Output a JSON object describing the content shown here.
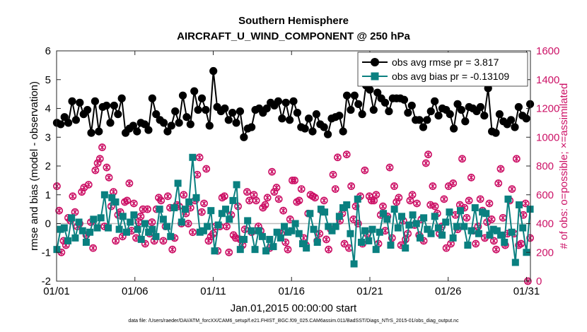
{
  "title_line1": "Southern Hemisphere",
  "title_line2": "AIRCRAFT_U_WIND_COMPONENT @ 250 hPa",
  "colors": {
    "rmse": "#000000",
    "bias": "#0a8080",
    "obs_count": "#cc1166",
    "zero_line": "#bbbbbb"
  },
  "footer": "data file: /Users/raeder/DAI/ATM_forcXX/CAM6_setup/f.e21.FHIST_BGC.f09_025.CAM6assim.011/BadSST/Diags_NTrS_2015-01/obs_diag_output.nc",
  "chart_data": {
    "type": "line",
    "title": "Southern Hemisphere",
    "subtitle": "AIRCRAFT_U_WIND_COMPONENT @ 250 hPa",
    "xlabel": "Jan.01,2015 00:00:00 start",
    "ylabel": "rmse and bias (model - observation)",
    "ylabel_right": "# of obs: o=possible; ×=assimilated",
    "xlim": [
      1,
      31.25
    ],
    "ylim": [
      -2,
      6
    ],
    "ylim_right": [
      0,
      1600
    ],
    "x_ticks": [
      1,
      6,
      11,
      16,
      21,
      26,
      31
    ],
    "x_tick_labels": [
      "01/01",
      "01/06",
      "01/11",
      "01/16",
      "01/21",
      "01/26",
      "01/31"
    ],
    "y_ticks": [
      -2,
      -1,
      0,
      1,
      2,
      3,
      4,
      5,
      6
    ],
    "y_ticks_right": [
      0,
      200,
      400,
      600,
      800,
      1000,
      1200,
      1400,
      1600
    ],
    "legend_position": "top-right",
    "series": [
      {
        "name": "obs avg rmse pr = 3.817",
        "axis": "left",
        "values": [
          3.5,
          3.45,
          3.7,
          3.5,
          4.25,
          3.6,
          4.2,
          3.8,
          3.95,
          3.15,
          4.25,
          3.2,
          4.05,
          4.1,
          3.5,
          4.1,
          3.8,
          4.35,
          3.15,
          3.3,
          3.4,
          3.2,
          3.5,
          3.45,
          3.25,
          4.35,
          3.8,
          3.6,
          3.5,
          3.2,
          3.4,
          3.9,
          3.5,
          4.45,
          3.7,
          3.45,
          4.6,
          3.95,
          4.35,
          3.95,
          3.4,
          5.3,
          4.05,
          3.9,
          4.0,
          3.6,
          3.85,
          3.5,
          3.9,
          3.0,
          3.3,
          3.35,
          3.95,
          4.0,
          3.85,
          4.0,
          4.2,
          4.1,
          4.25,
          3.65,
          4.2,
          3.6,
          4.25,
          3.85,
          3.35,
          3.3,
          3.65,
          3.2,
          3.8,
          3.45,
          3.35,
          3.1,
          3.65,
          3.7,
          3.75,
          3.2,
          4.45,
          3.95,
          4.45,
          4.15,
          3.8,
          4.8,
          4.65,
          3.95,
          4.55,
          4.35,
          4.2,
          3.9,
          4.35,
          4.35,
          4.35,
          4.3,
          3.85,
          4.1,
          3.6,
          3.6,
          3.35,
          3.6,
          3.9,
          4.25,
          3.75,
          4.0,
          3.95,
          3.8,
          3.3,
          4.15,
          3.95,
          3.55,
          4.05,
          4.0,
          3.9,
          4.05,
          3.75,
          4.7,
          3.2,
          3.15,
          3.8,
          3.55,
          3.45,
          3.6,
          3.35,
          4.05,
          3.75,
          3.65,
          4.15
        ]
      },
      {
        "name": "obs avg bias pr = -0.13109",
        "axis": "left",
        "values": [
          -0.9,
          -0.2,
          -0.15,
          -0.6,
          0.2,
          -0.5,
          0.05,
          -0.25,
          -0.65,
          -0.3,
          0.15,
          -0.15,
          0.2,
          1.0,
          -0.15,
          0.9,
          0.75,
          -0.2,
          0.25,
          -0.3,
          0.05,
          0.3,
          -0.2,
          -0.55,
          0.0,
          -0.3,
          -0.2,
          -0.45,
          0.5,
          0.15,
          -0.1,
          -0.45,
          0.55,
          1.4,
          0.05,
          0.5,
          0.75,
          2.3,
          0.9,
          -0.3,
          -0.25,
          -0.1,
          0.45,
          -0.95,
          -0.05,
          0.35,
          0.5,
          0.15,
          0.8,
          1.35,
          -0.9,
          -0.55,
          0.1,
          -0.25,
          -0.9,
          -0.25,
          -0.45,
          -0.95,
          -0.55,
          -0.8,
          -0.3,
          -0.5,
          -0.1,
          -0.3,
          -0.25,
          0.0,
          -0.35,
          -0.7,
          -0.85,
          0.35,
          -0.2,
          -0.65,
          0.5,
          0.4,
          -0.1,
          -0.25,
          -0.1,
          0.25,
          0.55,
          0.65,
          -0.35,
          -1.4,
          0.85,
          -0.65,
          -0.25,
          -0.6,
          -0.2,
          -0.9,
          -0.3,
          0.35,
          0.15,
          -0.75,
          0.5,
          -0.15,
          0.25,
          -0.85,
          -0.05,
          0.3,
          0.0,
          -0.5,
          0.2,
          -0.2,
          -0.35,
          0.25,
          -0.15,
          -0.4,
          0.05,
          0.4,
          -0.5,
          -0.1,
          0.45,
          -0.1,
          -0.75,
          -0.25,
          0.55,
          -0.35,
          0.4,
          0.35,
          -0.4,
          -0.2,
          -0.25,
          -0.4,
          -0.65,
          0.85,
          -0.3,
          -1.35,
          0.65,
          -0.15,
          -1.0,
          0.5
        ]
      },
      {
        "name": "# of obs possible / assimilated",
        "axis": "right",
        "values": [
          660,
          490,
          200,
          280,
          250,
          440,
          420,
          590,
          480,
          380,
          400,
          620,
          650,
          320,
          670,
          410,
          230,
          770,
          820,
          850,
          930,
          380,
          790,
          720,
          520,
          620,
          280,
          460,
          480,
          310,
          550,
          560,
          680,
          350,
          540,
          300,
          410,
          450,
          500,
          260,
          500,
          330,
          410,
          280,
          500,
          580,
          560,
          280,
          380,
          590,
          510,
          220,
          300,
          530,
          520,
          400,
          600,
          470,
          400,
          510,
          340,
          560,
          740,
          860,
          480,
          540,
          780,
          280,
          310,
          330,
          380,
          210,
          380,
          580,
          590,
          380,
          200,
          460,
          320,
          300,
          520,
          290,
          250,
          360,
          620,
          560,
          340,
          600,
          560,
          380,
          350,
          510,
          530,
          580,
          230,
          760,
          620,
          650,
          570,
          330,
          490,
          270,
          220,
          430,
          700,
          700,
          550,
          560,
          640,
          300,
          250,
          470,
          600,
          590,
          580,
          280,
          330,
          490,
          560,
          290,
          220,
          360,
          740,
          640,
          860,
          420,
          470,
          260,
          880,
          230,
          660,
          430,
          520,
          400,
          590,
          260,
          770,
          330,
          590,
          560,
          560,
          600,
          260,
          460,
          520,
          350,
          450,
          790,
          300,
          660,
          550,
          580,
          250,
          420,
          290,
          330,
          560,
          600,
          390,
          540,
          320,
          430,
          280,
          820,
          880,
          530,
          660,
          520,
          470,
          330,
          380,
          570,
          230,
          660,
          260,
          680,
          460,
          360,
          530,
          850,
          510,
          440,
          560,
          720,
          350,
          260,
          380,
          570,
          490,
          300,
          410,
          540,
          430,
          280,
          220,
          680,
          780,
          440,
          250,
          330,
          560,
          640,
          330,
          850,
          250,
          260,
          460,
          540,
          0,
          300
        ]
      }
    ]
  }
}
